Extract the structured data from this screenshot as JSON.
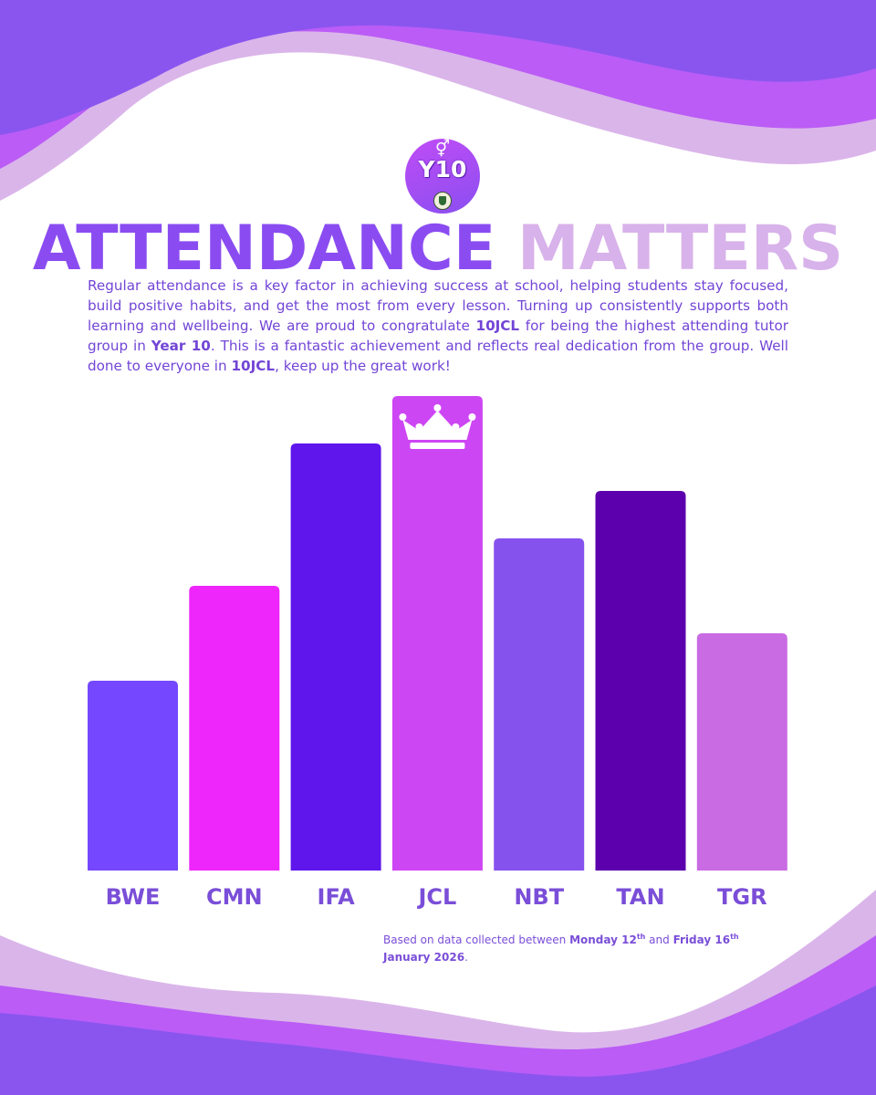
{
  "badge": {
    "label": "Y10",
    "symbol": "⚥"
  },
  "header": {
    "title_part1": "ATTENDANCE",
    "title_part2": "MATTERS"
  },
  "intro": {
    "text1": "Regular attendance is a key factor in achieving success at school, helping students stay focused, build positive habits, and get the most from every lesson. Turning up consistently supports both learning and wellbeing. We are proud to congratulate ",
    "group": "10JCL",
    "text2": " for being the highest attending tutor group in ",
    "year": "Year 10",
    "text3": ". This is a fantastic achievement and reflects real dedication from the group. Well done to everyone in ",
    "group2": "10JCL",
    "text4": ", keep up the great work!"
  },
  "chart_data": {
    "type": "bar",
    "title": "ATTENDANCE MATTERS",
    "categories": [
      "BWE",
      "CMN",
      "IFA",
      "JCL",
      "NBT",
      "TAN",
      "TGR"
    ],
    "values": [
      40,
      60,
      90,
      100,
      70,
      80,
      50
    ],
    "value_scale": "relative bar height (no axis shown)",
    "ylim": [
      0,
      100
    ],
    "xlabel": "",
    "ylabel": "",
    "grid": false,
    "highlight": "JCL",
    "highlight_icon": "crown-icon",
    "colors": [
      "#7548ff",
      "#ee26fb",
      "#5e16ed",
      "#cd46f4",
      "#8652ee",
      "#5c00ad",
      "#c96be3"
    ]
  },
  "footnote": {
    "prefix": "Based on data collected between ",
    "start_label": "Monday 12",
    "start_sup": "th",
    "mid": " and ",
    "end_label": "Friday 16",
    "end_sup": "th",
    "year_label": "January 2026",
    "suffix": "."
  },
  "colors": {
    "wave_dark": "#8a55ef",
    "wave_mid": "#bb5cf6",
    "wave_light": "#dab5ea",
    "label": "#7a4ed8"
  }
}
